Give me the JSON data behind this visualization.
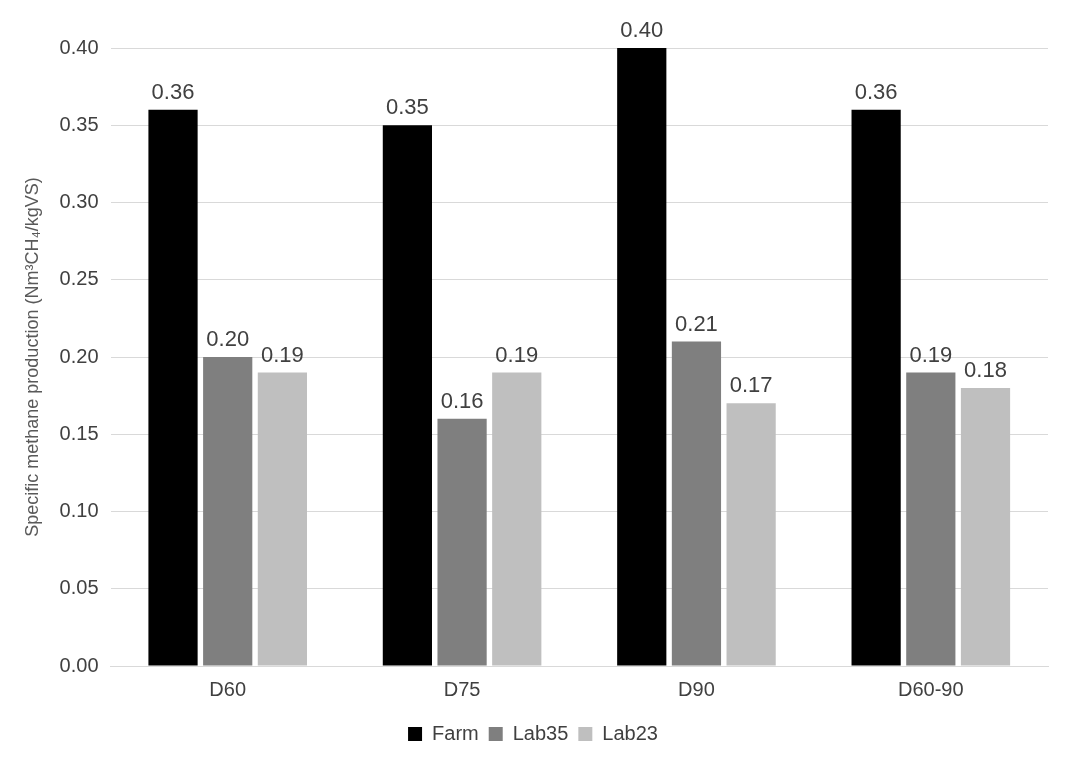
{
  "chart_data": {
    "type": "bar",
    "ylabel": "Specific methane production (Nm³CH₄/kgVS)",
    "categories": [
      "D60",
      "D75",
      "D90",
      "D60-90"
    ],
    "series": [
      {
        "name": "Farm",
        "color": "#000000",
        "values": [
          0.36,
          0.35,
          0.4,
          0.36
        ],
        "value_labels": [
          "0.36",
          "0.35",
          "0.40",
          "0.36"
        ]
      },
      {
        "name": "Lab35",
        "color": "#7f7f7f",
        "values": [
          0.2,
          0.16,
          0.21,
          0.19
        ],
        "value_labels": [
          "0.20",
          "0.16",
          "0.21",
          "0.19"
        ]
      },
      {
        "name": "Lab23",
        "color": "#bfbfbf",
        "values": [
          0.19,
          0.19,
          0.17,
          0.18
        ],
        "value_labels": [
          "0.19",
          "0.19",
          "0.17",
          "0.18"
        ]
      }
    ],
    "ylim": [
      0,
      0.4
    ],
    "yticks": [
      {
        "value": 0,
        "label": "0.00"
      },
      {
        "value": 0.05,
        "label": "0.05"
      },
      {
        "value": 0.1,
        "label": "0.10"
      },
      {
        "value": 0.15,
        "label": "0.15"
      },
      {
        "value": 0.2,
        "label": "0.20"
      },
      {
        "value": 0.25,
        "label": "0.25"
      },
      {
        "value": 0.3,
        "label": "0.30"
      },
      {
        "value": 0.35,
        "label": "0.35"
      },
      {
        "value": 0.4,
        "label": "0.40"
      }
    ],
    "grid": "y",
    "legend": "bottom"
  }
}
